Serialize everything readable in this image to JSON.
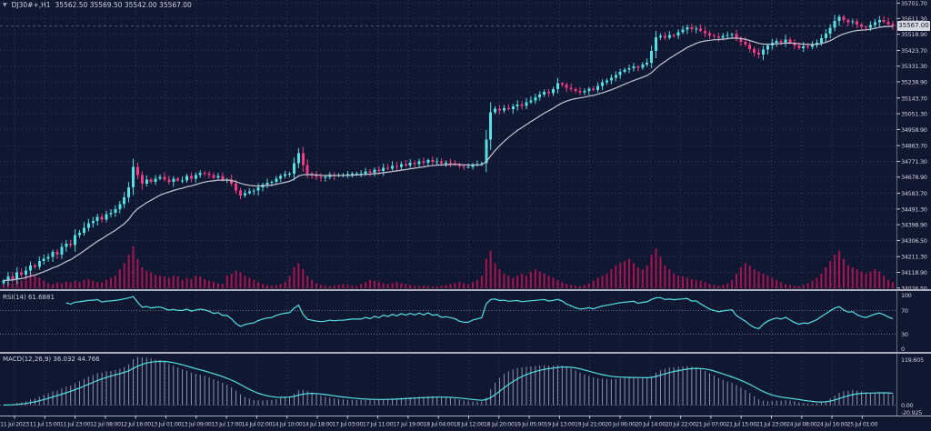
{
  "window": {
    "title_symbol": "DJ30#+,H1",
    "title_ohlc": "35562.50 35569.50 35542.00 35567.00",
    "dropdown_icon": "▼"
  },
  "indicators": {
    "rsi_label": "RSI(14) 61.6881",
    "macd_label": "MACD(12,26,9) 36.032 44.766"
  },
  "price_axis": {
    "current": "35567.00"
  },
  "colors": {
    "background": "#101731",
    "grid": "#303a63",
    "bull": "#54dfe2",
    "bear": "#f43c85",
    "ma_line": "#c2c5d1",
    "volume": "#a81450",
    "indicator_line": "#54dfe2",
    "macd_histogram": "#9aa0bd",
    "axis_text": "#cdd0dc",
    "separator": "#a9adbb",
    "level_line": "#8087a3",
    "current_price_bg": "#d7dae2",
    "current_price_text": "#101730"
  },
  "chart_data": {
    "type": "candlestick",
    "symbol": "DJ30#+",
    "timeframe": "H1",
    "title": "DJ30#+,H1",
    "legend_position": "top-left",
    "grid": true,
    "last_ohlc": {
      "open": "35562.50",
      "high": "35569.50",
      "low": "35542.00",
      "close": "35567.00"
    },
    "price_range": [
      34020,
      35720
    ],
    "price_axis_labels": [
      "35701.70",
      "35611.30",
      "35518.90",
      "35423.70",
      "35331.30",
      "35238.90",
      "35143.70",
      "35051.30",
      "34958.90",
      "34863.70",
      "34771.30",
      "34678.90",
      "34583.70",
      "34491.30",
      "34398.90",
      "34306.50",
      "34211.30",
      "34118.90",
      "34026.50"
    ],
    "time_labels": [
      "11 Jul 2023",
      "11 Jul 15:00",
      "11 Jul 23:00",
      "12 Jul 08:00",
      "12 Jul 16:00",
      "13 Jul 01:00",
      "13 Jul 09:00",
      "13 Jul 17:00",
      "14 Jul 02:00",
      "14 Jul 10:00",
      "14 Jul 18:00",
      "17 Jul 03:00",
      "17 Jul 11:00",
      "17 Jul 19:00",
      "18 Jul 04:00",
      "18 Jul 12:00",
      "18 Jul 20:00",
      "19 Jul 05:00",
      "19 Jul 13:00",
      "19 Jul 21:00",
      "20 Jul 06:00",
      "20 Jul 14:00",
      "20 Jul 22:00",
      "21 Jul 07:00",
      "21 Jul 15:00",
      "21 Jul 23:00",
      "24 Jul 08:00",
      "24 Jul 16:00",
      "25 Jul 01:00"
    ],
    "closes": [
      34070,
      34095,
      34080,
      34120,
      34105,
      34130,
      34160,
      34150,
      34185,
      34200,
      34210,
      34238,
      34222,
      34268,
      34288,
      34280,
      34338,
      34352,
      34382,
      34408,
      34420,
      34445,
      34430,
      34460,
      34470,
      34490,
      34520,
      34560,
      34620,
      34740,
      34690,
      34640,
      34665,
      34650,
      34670,
      34680,
      34665,
      34650,
      34670,
      34660,
      34660,
      34685,
      34670,
      34690,
      34705,
      34700,
      34690,
      34675,
      34685,
      34665,
      34665,
      34640,
      34600,
      34570,
      34585,
      34595,
      34600,
      34620,
      34635,
      34645,
      34650,
      34670,
      34685,
      34695,
      34700,
      34760,
      34820,
      34750,
      34700,
      34690,
      34680,
      34675,
      34680,
      34690,
      34685,
      34690,
      34690,
      34695,
      34700,
      34700,
      34700,
      34712,
      34705,
      34722,
      34715,
      34735,
      34728,
      34745,
      34738,
      34755,
      34748,
      34762,
      34755,
      34770,
      34762,
      34778,
      34768,
      34772,
      34760,
      34764,
      34760,
      34755,
      34745,
      34740,
      34740,
      34750,
      34755,
      34760,
      34900,
      35060,
      35080,
      35070,
      35085,
      35078,
      35095,
      35105,
      35098,
      35118,
      35130,
      35148,
      35165,
      35180,
      35172,
      35195,
      35230,
      35222,
      35205,
      35196,
      35185,
      35178,
      35186,
      35198,
      35192,
      35215,
      35235,
      35248,
      35262,
      35280,
      35298,
      35310,
      35318,
      35330,
      35322,
      35340,
      35352,
      35420,
      35500,
      35508,
      35498,
      35515,
      35512,
      35530,
      35545,
      35560,
      35548,
      35552,
      35538,
      35525,
      35512,
      35505,
      35498,
      35508,
      35515,
      35520,
      35492,
      35475,
      35458,
      35432,
      35410,
      35398,
      35428,
      35452,
      35468,
      35480,
      35472,
      35488,
      35470,
      35452,
      35438,
      35448,
      35444,
      35456,
      35470,
      35496,
      35522,
      35558,
      35598,
      35622,
      35602,
      35588,
      35594,
      35575,
      35562,
      35556,
      35574,
      35590,
      35602,
      35592,
      35578,
      35567
    ],
    "volumes": [
      0.1,
      0.15,
      0.12,
      0.2,
      0.18,
      0.3,
      0.38,
      0.32,
      0.25,
      0.18,
      0.12,
      0.1,
      0.14,
      0.12,
      0.16,
      0.14,
      0.18,
      0.15,
      0.2,
      0.22,
      0.18,
      0.15,
      0.14,
      0.2,
      0.25,
      0.3,
      0.45,
      0.6,
      0.8,
      1.0,
      0.7,
      0.5,
      0.42,
      0.38,
      0.32,
      0.3,
      0.28,
      0.25,
      0.3,
      0.28,
      0.2,
      0.25,
      0.22,
      0.3,
      0.28,
      0.22,
      0.18,
      0.15,
      0.12,
      0.1,
      0.3,
      0.35,
      0.42,
      0.38,
      0.3,
      0.25,
      0.2,
      0.15,
      0.1,
      0.08,
      0.06,
      0.08,
      0.1,
      0.15,
      0.3,
      0.5,
      0.6,
      0.45,
      0.3,
      0.2,
      0.12,
      0.08,
      0.06,
      0.05,
      0.06,
      0.08,
      0.1,
      0.08,
      0.06,
      0.05,
      0.1,
      0.15,
      0.2,
      0.18,
      0.15,
      0.12,
      0.1,
      0.12,
      0.15,
      0.12,
      0.1,
      0.08,
      0.06,
      0.05,
      0.06,
      0.05,
      0.04,
      0.05,
      0.06,
      0.08,
      0.1,
      0.12,
      0.15,
      0.12,
      0.1,
      0.15,
      0.2,
      0.3,
      0.7,
      0.9,
      0.6,
      0.45,
      0.35,
      0.3,
      0.25,
      0.3,
      0.35,
      0.3,
      0.4,
      0.45,
      0.4,
      0.35,
      0.3,
      0.25,
      0.2,
      0.15,
      0.1,
      0.08,
      0.06,
      0.05,
      0.08,
      0.12,
      0.18,
      0.25,
      0.3,
      0.35,
      0.45,
      0.55,
      0.6,
      0.65,
      0.7,
      0.6,
      0.5,
      0.45,
      0.55,
      0.8,
      0.95,
      0.75,
      0.55,
      0.45,
      0.35,
      0.3,
      0.28,
      0.25,
      0.22,
      0.2,
      0.18,
      0.15,
      0.1,
      0.08,
      0.06,
      0.08,
      0.12,
      0.2,
      0.35,
      0.5,
      0.6,
      0.55,
      0.45,
      0.4,
      0.35,
      0.3,
      0.25,
      0.2,
      0.15,
      0.1,
      0.08,
      0.06,
      0.05,
      0.08,
      0.12,
      0.18,
      0.25,
      0.35,
      0.5,
      0.65,
      0.8,
      0.9,
      0.7,
      0.55,
      0.5,
      0.45,
      0.4,
      0.35,
      0.4,
      0.45,
      0.4,
      0.3,
      0.2,
      0.15
    ],
    "ma": {
      "period": 16
    },
    "rsi": {
      "period": 14,
      "value": 61.6881,
      "levels": [
        70,
        30
      ],
      "scale_labels": [
        "100",
        "70",
        "30",
        "0"
      ],
      "range": [
        0,
        100
      ]
    },
    "macd": {
      "fast": 12,
      "slow": 26,
      "signal": 9,
      "macd_value": 36.032,
      "signal_value": 44.766,
      "scale_labels": [
        "119.605",
        "0.00",
        "-20.925"
      ],
      "range": [
        -25,
        130
      ]
    }
  }
}
